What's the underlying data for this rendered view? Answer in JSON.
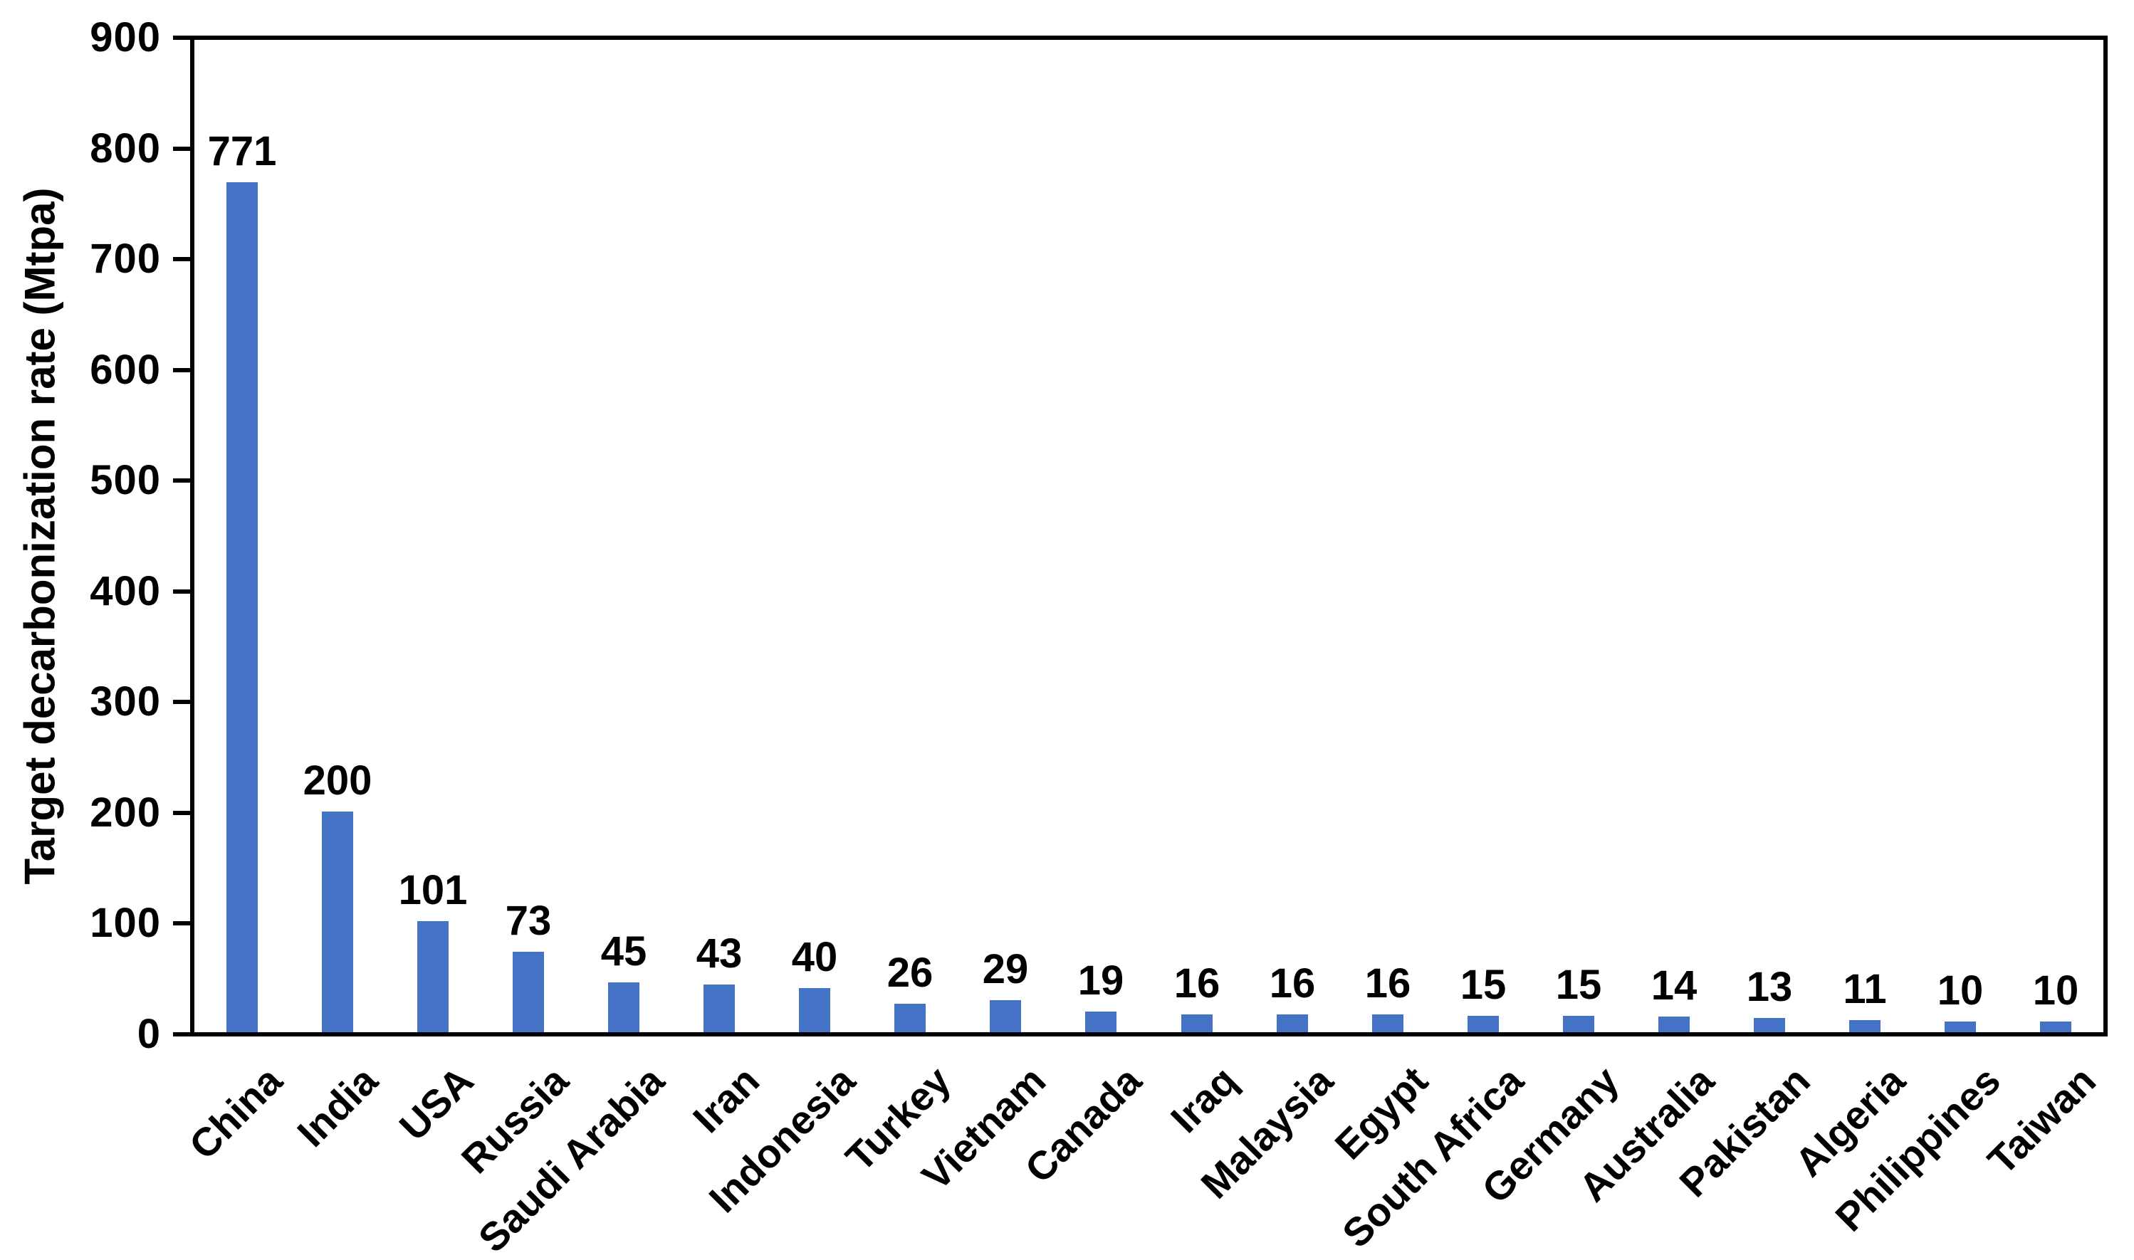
{
  "chart_data": {
    "type": "bar",
    "title": "",
    "xlabel": "",
    "ylabel": "Target decarbonization rate (Mtpa)",
    "categories": [
      "China",
      "India",
      "USA",
      "Russia",
      "Saudi Arabia",
      "Iran",
      "Indonesia",
      "Turkey",
      "Vietnam",
      "Canada",
      "Iraq",
      "Malaysia",
      "Egypt",
      "South Africa",
      "Germany",
      "Australia",
      "Pakistan",
      "Algeria",
      "Philippines",
      "Taiwan"
    ],
    "values": [
      771,
      200,
      101,
      73,
      45,
      43,
      40,
      26,
      29,
      19,
      16,
      16,
      16,
      15,
      15,
      14,
      13,
      11,
      10,
      10
    ],
    "data_labels": [
      "771",
      "200",
      "101",
      "73",
      "45",
      "43",
      "40",
      "26",
      "29",
      "19",
      "16",
      "16",
      "16",
      "15",
      "15",
      "14",
      "13",
      "11",
      "10",
      "10"
    ],
    "ylim": [
      0,
      900
    ],
    "ytick_step": 100,
    "ytick_labels": [
      "0",
      "100",
      "200",
      "300",
      "400",
      "500",
      "600",
      "700",
      "800",
      "900"
    ],
    "grid": false,
    "legend": "none",
    "bar_color": "#4472C4",
    "axis_color": "#000000",
    "text_color": "#000000"
  }
}
